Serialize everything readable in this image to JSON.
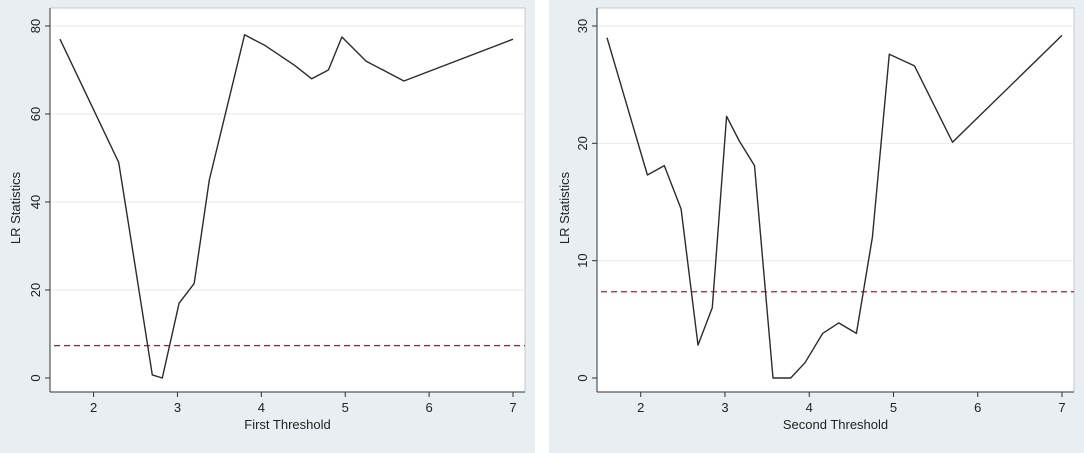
{
  "chart_data": [
    {
      "type": "line",
      "xlabel": "First Threshold",
      "ylabel": "LR Statistics",
      "xlim": [
        1.6,
        7.0
      ],
      "ylim": [
        0,
        80
      ],
      "xticks": [
        "2",
        "3",
        "4",
        "5",
        "6",
        "7"
      ],
      "yticks": [
        "0",
        "20",
        "40",
        "60",
        "80"
      ],
      "grid": "horizontal",
      "critical_value": 7.35,
      "colors": {
        "line": "#2b2b2b",
        "critical_line": "#a0203c",
        "plot_bg": "#ffffff",
        "panel_bg": "#e9eef2",
        "grid": "#eaeaea"
      },
      "x": [
        1.6,
        2.3,
        2.45,
        2.7,
        2.82,
        3.02,
        3.2,
        3.38,
        3.8,
        4.05,
        4.4,
        4.6,
        4.8,
        4.96,
        5.25,
        5.7,
        7.0
      ],
      "y": [
        77,
        49,
        31,
        0.7,
        0,
        17,
        21.5,
        45,
        78,
        75.5,
        71,
        68,
        70,
        77.5,
        72,
        67.5,
        77
      ]
    },
    {
      "type": "line",
      "xlabel": "Second Threshold",
      "ylabel": "LR Statistics",
      "xlim": [
        1.6,
        7.0
      ],
      "ylim": [
        0,
        30
      ],
      "xticks": [
        "2",
        "3",
        "4",
        "5",
        "6",
        "7"
      ],
      "yticks": [
        "0",
        "10",
        "20",
        "30"
      ],
      "grid": "horizontal",
      "critical_value": 7.35,
      "colors": {
        "line": "#2b2b2b",
        "critical_line": "#a0203c",
        "plot_bg": "#ffffff",
        "panel_bg": "#e9eef2",
        "grid": "#eaeaea"
      },
      "x": [
        1.6,
        2.08,
        2.28,
        2.48,
        2.68,
        2.85,
        3.02,
        3.17,
        3.35,
        3.57,
        3.78,
        3.95,
        4.16,
        4.35,
        4.56,
        4.75,
        4.95,
        5.25,
        5.7,
        7.0
      ],
      "y": [
        29,
        17.3,
        18.1,
        14.4,
        2.8,
        6,
        22.3,
        20.2,
        18.1,
        0,
        0,
        1.3,
        3.8,
        4.7,
        3.8,
        12,
        27.6,
        26.6,
        20.1,
        29.2
      ]
    }
  ]
}
